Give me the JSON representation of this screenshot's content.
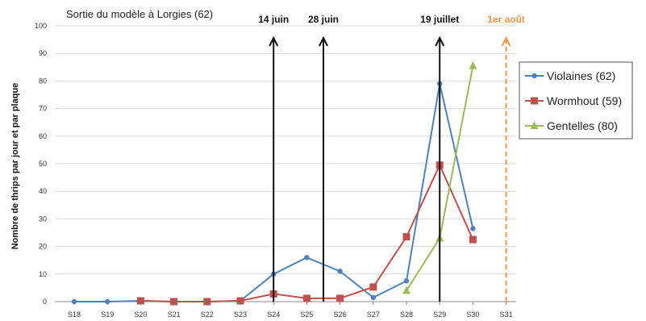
{
  "chart_data": {
    "type": "line",
    "title": "Sortie du modèle à Lorgies (62)",
    "ylabel": "Nombre de thrips par jour et par plaque",
    "xlabel": "",
    "categories": [
      "S18",
      "S19",
      "S20",
      "S21",
      "S22",
      "S23",
      "S24",
      "S25",
      "S26",
      "S27",
      "S28",
      "S29",
      "S30",
      "S31"
    ],
    "ylim": [
      0,
      100
    ],
    "yticks": [
      0,
      10,
      20,
      30,
      40,
      50,
      60,
      70,
      80,
      90,
      100
    ],
    "grid": true,
    "legend_position": "right",
    "series": [
      {
        "name": "Violaines (62)",
        "color": "#4f81bd",
        "marker": "circle",
        "values": [
          0,
          0,
          0.3,
          0,
          0,
          0.3,
          10,
          16,
          11,
          1.5,
          7.5,
          79,
          26.5,
          null
        ]
      },
      {
        "name": "Wormhout (59)",
        "color": "#c0504d",
        "marker": "square",
        "values": [
          null,
          null,
          0.3,
          0,
          0,
          0.3,
          2.8,
          1.2,
          1.2,
          5.3,
          23.5,
          49.5,
          22.5,
          null
        ]
      },
      {
        "name": "Gentelles (80)",
        "color": "#9bbb59",
        "marker": "triangle",
        "values": [
          null,
          null,
          null,
          null,
          null,
          null,
          null,
          null,
          null,
          null,
          4,
          23,
          85.5,
          null
        ]
      }
    ],
    "annotations": [
      {
        "label": "14 juin",
        "x": 6,
        "color": "#111111",
        "style": "solid"
      },
      {
        "label": "28 juin",
        "x": 7.5,
        "color": "#111111",
        "style": "solid"
      },
      {
        "label": "19 juillet",
        "x": 11,
        "color": "#111111",
        "style": "solid"
      },
      {
        "label": "1er août",
        "x": 13,
        "color": "#f79646",
        "style": "dashed"
      }
    ]
  }
}
